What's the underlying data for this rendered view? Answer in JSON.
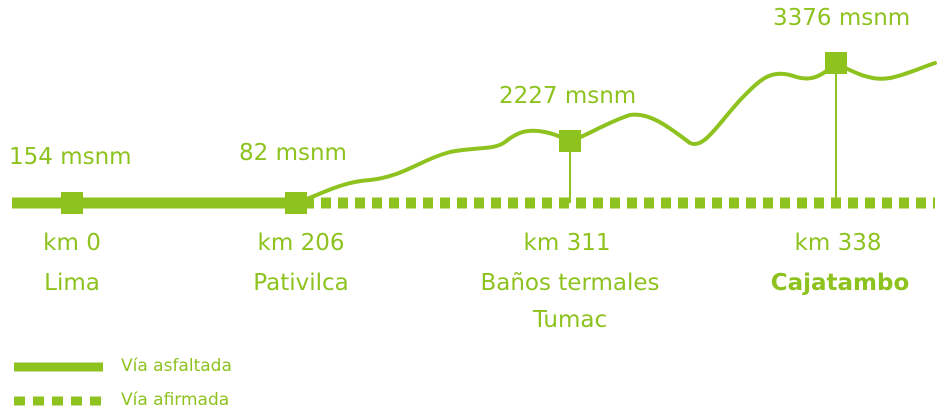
{
  "colors": {
    "accent": "#8dc21f"
  },
  "stops": [
    {
      "km": "km 0",
      "elevation": "154 msnm",
      "name": "Lima",
      "bold": false
    },
    {
      "km": "km 206",
      "elevation": "82 msnm",
      "name": "Pativilca",
      "bold": false
    },
    {
      "km": "km 311",
      "elevation": "2227 msnm",
      "name": "Baños termales",
      "name2": "Tumac",
      "bold": false
    },
    {
      "km": "km 338",
      "elevation": "3376 msnm",
      "name": "Cajatambo",
      "bold": true
    }
  ],
  "legend": {
    "paved": "Vía asfaltada",
    "unpaved": "Vía afirmada"
  }
}
